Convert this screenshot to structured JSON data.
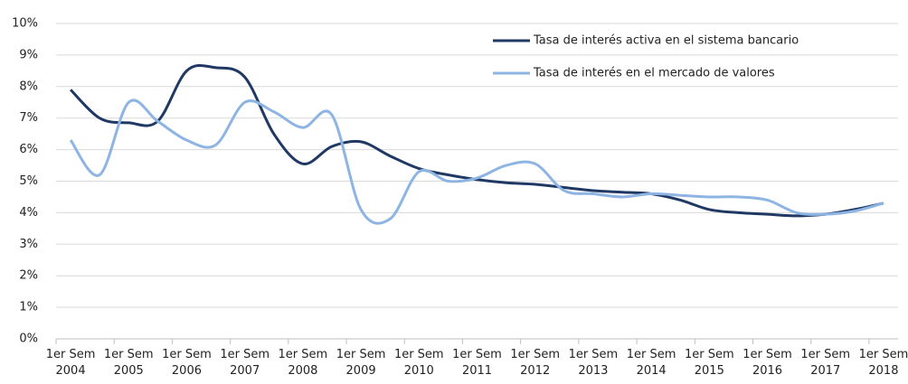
{
  "chart_data": {
    "type": "line",
    "categories": [
      "1er Sem 2004",
      null,
      "1er Sem 2005",
      null,
      "1er Sem 2006",
      null,
      "1er Sem 2007",
      null,
      "1er Sem 2008",
      null,
      "1er Sem 2009",
      null,
      "1er Sem 2010",
      null,
      "1er Sem 2011",
      null,
      "1er Sem 2012",
      null,
      "1er Sem 2013",
      null,
      "1er Sem 2014",
      null,
      "1er Sem 2015",
      null,
      "1er Sem 2016",
      null,
      "1er Sem 2017",
      null,
      "1er Sem 2018"
    ],
    "series": [
      {
        "name": "Tasa de interés activa en el sistema bancario",
        "color": "#1f3864",
        "values": [
          7.9,
          7.0,
          6.85,
          6.9,
          8.5,
          8.6,
          8.3,
          6.5,
          5.55,
          6.1,
          6.25,
          5.8,
          5.4,
          5.2,
          5.05,
          4.95,
          4.9,
          4.8,
          4.7,
          4.65,
          4.6,
          4.4,
          4.1,
          4.0,
          3.95,
          3.9,
          3.95,
          4.1,
          4.3
        ]
      },
      {
        "name": "Tasa de interés en el mercado de valores",
        "color": "#8eb4e3",
        "values": [
          6.3,
          5.2,
          7.5,
          6.9,
          6.3,
          6.15,
          7.5,
          7.2,
          6.7,
          7.1,
          4.1,
          3.8,
          5.3,
          5.0,
          5.1,
          5.5,
          5.55,
          4.7,
          4.6,
          4.5,
          4.6,
          4.55,
          4.5,
          4.5,
          4.4,
          4.0,
          3.95,
          4.05,
          4.3
        ]
      }
    ],
    "ylim": [
      0,
      10
    ],
    "yticks": [
      {
        "value": 0,
        "label": "0%"
      },
      {
        "value": 1,
        "label": "1%"
      },
      {
        "value": 2,
        "label": "2%"
      },
      {
        "value": 3,
        "label": "3%"
      },
      {
        "value": 4,
        "label": "4%"
      },
      {
        "value": 5,
        "label": "5%"
      },
      {
        "value": 6,
        "label": "6%"
      },
      {
        "value": 7,
        "label": "7%"
      },
      {
        "value": 8,
        "label": "8%"
      },
      {
        "value": 9,
        "label": "9%"
      },
      {
        "value": 10,
        "label": "10%"
      }
    ],
    "grid": true,
    "legend": "top-right"
  }
}
